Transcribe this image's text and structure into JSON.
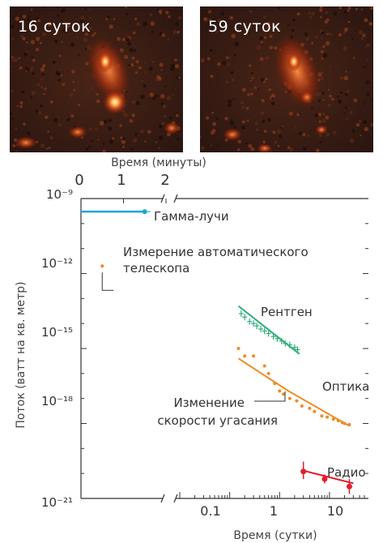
{
  "panels": [
    {
      "label": "16 суток"
    },
    {
      "label": "59 суток"
    }
  ],
  "chart_data": {
    "type": "scatter",
    "top_axis": {
      "label": "Время (минуты)",
      "ticks": [
        "0",
        "1",
        "2"
      ]
    },
    "xlabel": "Время (сутки)",
    "ylabel": "Поток (ватт на кв. метр)",
    "x_scale": "log",
    "y_scale": "log",
    "x_ticks": [
      "0.1",
      "1",
      "10"
    ],
    "y_ticks": [
      "10⁻⁹",
      "10⁻¹²",
      "10⁻¹⁵",
      "10⁻¹⁸",
      "10⁻²¹"
    ],
    "ylim": [
      1e-21,
      1e-09
    ],
    "axis_break": true,
    "series": [
      {
        "name": "Гамма-лучи",
        "color": "#1aa7d6",
        "segment": "minutes",
        "x": [
          0,
          1.5
        ],
        "y": [
          3e-10,
          3e-10
        ]
      },
      {
        "name": "Измерение автоматического телескопа",
        "color": "#f08a24",
        "segment": "minutes",
        "x": [
          0.5
        ],
        "y": [
          2e-12
        ]
      },
      {
        "name": "Рентген",
        "color": "#2fae7a",
        "segment": "days",
        "x": [
          0.17,
          0.2,
          0.25,
          0.3,
          0.35,
          0.42,
          0.5,
          0.6,
          0.75,
          0.9,
          1.1,
          1.3,
          1.6,
          2.0,
          2.3
        ],
        "y": [
          2.5e-14,
          1.8e-14,
          1.2e-14,
          1e-14,
          8e-15,
          6e-15,
          5e-15,
          4e-15,
          3e-15,
          2.5e-15,
          2e-15,
          1.6e-15,
          1.4e-15,
          1.1e-15,
          9e-16
        ],
        "trend": [
          [
            0.15,
            5e-14
          ],
          [
            2.5,
            6e-16
          ]
        ]
      },
      {
        "name": "Оптика",
        "color": "#f08a24",
        "segment": "days",
        "x": [
          0.15,
          0.2,
          0.3,
          0.5,
          0.6,
          0.8,
          1.0,
          1.2,
          1.6,
          2.2,
          2.8,
          4,
          5,
          7,
          9,
          12,
          15,
          18,
          20,
          25
        ],
        "y": [
          1e-15,
          5e-16,
          5e-16,
          2e-16,
          1e-16,
          4e-17,
          2e-17,
          1.5e-17,
          1e-17,
          8e-18,
          5e-18,
          4e-18,
          3e-18,
          2e-18,
          1.8e-18,
          1.5e-18,
          1.3e-18,
          1.1e-18,
          1e-18,
          9e-19
        ],
        "trend": [
          [
            0.15,
            4e-16
          ],
          [
            1.5,
            2e-17
          ],
          [
            25,
            8e-19
          ]
        ]
      },
      {
        "name": "Радио",
        "color": "#e0202a",
        "segment": "days",
        "x": [
          3,
          8,
          25
        ],
        "y": [
          1.2e-20,
          6e-21,
          3e-21
        ],
        "yerr": [
          [
            6e-21,
            3e-20
          ],
          [
            4e-21,
            9e-21
          ],
          [
            1.5e-21,
            6e-21
          ]
        ],
        "trend": [
          [
            3,
            1.3e-20
          ],
          [
            30,
            4e-21
          ]
        ]
      }
    ],
    "annotations": [
      {
        "text": "Изменение"
      },
      {
        "text": "скорости угасания"
      }
    ]
  }
}
